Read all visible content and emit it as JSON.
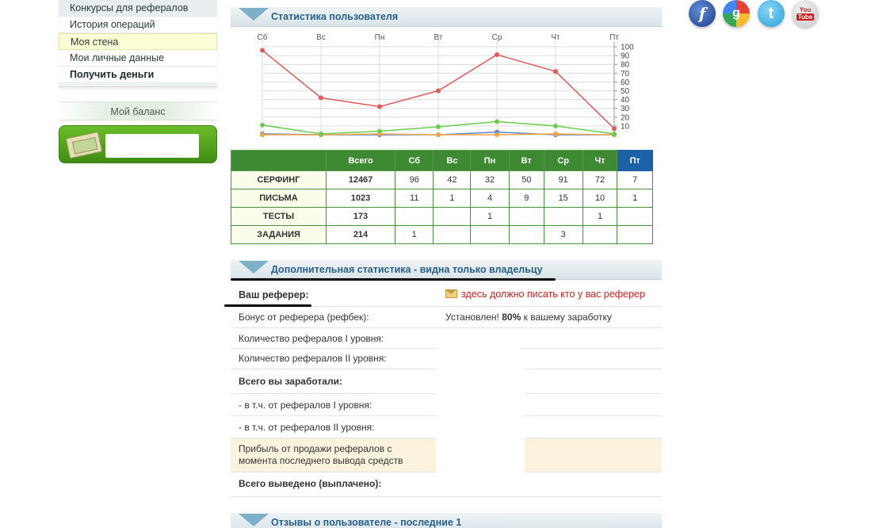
{
  "sidebar": {
    "items": [
      {
        "label": "Конкурсы для рефералов"
      },
      {
        "label": "История операций"
      },
      {
        "label": "Моя стена"
      },
      {
        "label": "Мои личные данные"
      },
      {
        "label": "Получить деньги"
      }
    ],
    "balance_title": "Мой баланс"
  },
  "social": {
    "facebook": "f",
    "google": "g",
    "twitter": "t",
    "youtube_top": "You",
    "youtube_bottom": "Tube"
  },
  "sections": {
    "user_stats": "Статистика пользователя",
    "additional_stats": "Дополнительная статистика - видна только владельцу",
    "reviews": "Отзывы о пользователе - последние 1"
  },
  "chart_data": {
    "type": "line",
    "categories": [
      "Сб",
      "Вс",
      "Пн",
      "Вт",
      "Ср",
      "Чт",
      "Пт"
    ],
    "ylim": [
      0,
      100
    ],
    "yticks": [
      "10",
      "20",
      "30",
      "40",
      "50",
      "60",
      "70",
      "80",
      "90",
      "100"
    ],
    "grid": true,
    "series": [
      {
        "values": [
          96,
          42,
          32,
          50,
          91,
          72,
          7
        ],
        "color": "#e05a5a"
      },
      {
        "values": [
          11,
          1,
          4,
          9,
          15,
          10,
          1
        ],
        "color": "#6ccc50"
      },
      {
        "values": [
          0,
          0,
          1,
          0,
          0,
          1,
          0
        ],
        "color": "#f0a74a"
      },
      {
        "values": [
          1,
          0,
          0,
          0,
          3,
          0,
          0
        ],
        "color": "#5b84c4"
      }
    ]
  },
  "stats_table": {
    "headers": [
      "Всего",
      "Сб",
      "Вс",
      "Пн",
      "Вт",
      "Ср",
      "Чт",
      "Пт"
    ],
    "rows": [
      {
        "label": "СЕРФИНГ",
        "cells": [
          "12467",
          "96",
          "42",
          "32",
          "50",
          "91",
          "72",
          "7"
        ]
      },
      {
        "label": "ПИСЬМА",
        "cells": [
          "1023",
          "11",
          "1",
          "4",
          "9",
          "15",
          "10",
          "1"
        ]
      },
      {
        "label": "ТЕСТЫ",
        "cells": [
          "173",
          "",
          "",
          "1",
          "",
          "",
          "1",
          ""
        ]
      },
      {
        "label": "ЗАДАНИЯ",
        "cells": [
          "214",
          "1",
          "",
          "",
          "",
          "3",
          "",
          ""
        ]
      }
    ]
  },
  "info": {
    "referrer_label": "Ваш реферер:",
    "referrer_value": "здесь должно писать кто у вас реферер",
    "bonus_label": "Бонус от реферера (рефбек):",
    "bonus_prefix": "Установлен!",
    "bonus_percent": "80%",
    "bonus_suffix": "к вашему заработку",
    "ref1_label": "Количество рефералов I уровня:",
    "ref2_label": "Количество рефералов II уровня:",
    "earned_label": "Всего вы заработали:",
    "earned_ref1_label": "- в т.ч. от рефералов I уровня:",
    "earned_ref2_label": "- в т.ч. от рефералов II уровня:",
    "sale_label_1": "Прибыль от продажи рефералов с",
    "sale_label_2": "момента последнего вывода средств",
    "withdrawn_label": "Всего выведено (выплачено):"
  }
}
